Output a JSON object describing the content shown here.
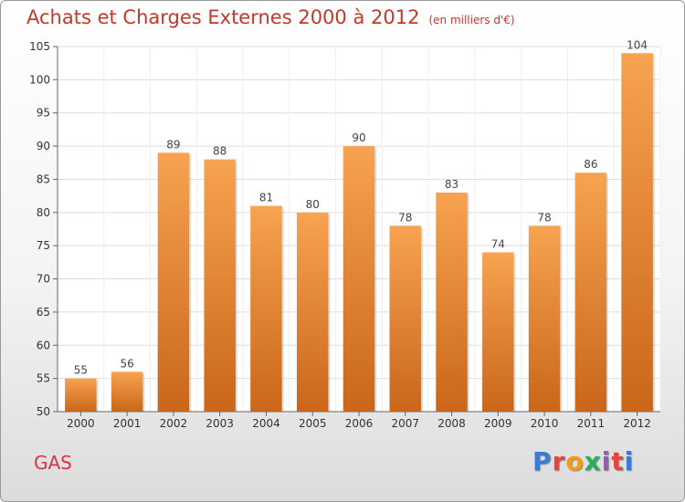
{
  "header": {
    "title": "Achats et Charges Externes 2000 à 2012",
    "subtitle": "(en milliers d'€)"
  },
  "footer": {
    "location": "GAS",
    "brand": "Proxiti",
    "brand_colors": [
      "#3a7bd5",
      "#e8433c",
      "#f39c12",
      "#27ae60",
      "#9b59b6",
      "#e8433c",
      "#3a7bd5"
    ]
  },
  "chart_data": {
    "type": "bar",
    "title": "Achats et Charges Externes 2000 à 2012",
    "subtitle": "(en milliers d'€)",
    "categories": [
      "2000",
      "2001",
      "2002",
      "2003",
      "2004",
      "2005",
      "2006",
      "2007",
      "2008",
      "2009",
      "2010",
      "2011",
      "2012"
    ],
    "values": [
      55,
      56,
      89,
      88,
      81,
      80,
      90,
      78,
      83,
      74,
      78,
      86,
      104
    ],
    "ylim": [
      50,
      105
    ],
    "yticks": [
      50,
      55,
      60,
      65,
      70,
      75,
      80,
      85,
      90,
      95,
      100,
      105
    ],
    "grid": true,
    "bar_color_top": "#f7a350",
    "bar_color_bottom": "#c9661a",
    "xlabel": "",
    "ylabel": ""
  }
}
